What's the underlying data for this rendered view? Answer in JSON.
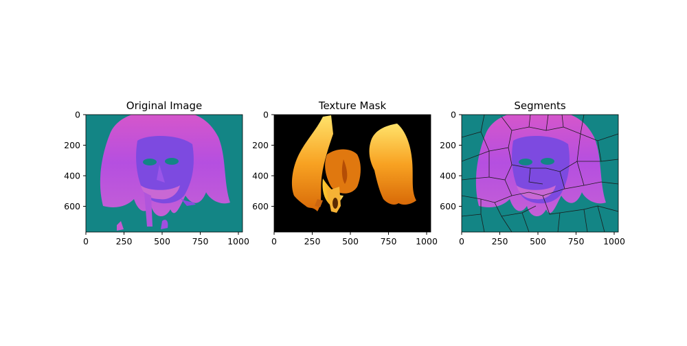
{
  "panels": [
    {
      "id": "original",
      "title": "Original Image",
      "x_ticks": [
        "0",
        "250",
        "500",
        "750",
        "1000"
      ],
      "y_ticks": [
        "0",
        "200",
        "400",
        "600"
      ],
      "content": "face with long hair rendered in magenta/purple colormap on teal background"
    },
    {
      "id": "mask",
      "title": "Texture Mask",
      "x_ticks": [
        "0",
        "250",
        "500",
        "750",
        "1000"
      ],
      "y_ticks": [
        "0",
        "200",
        "400",
        "600"
      ],
      "content": "hair and beard textures in yellow/orange heat colormap on black background"
    },
    {
      "id": "segments",
      "title": "Segments",
      "x_ticks": [
        "0",
        "250",
        "500",
        "750",
        "1000"
      ],
      "y_ticks": [
        "0",
        "200",
        "400",
        "600"
      ],
      "content": "superpixel segmentation overlay with black boundaries"
    }
  ],
  "colors": {
    "teal_bg": "#138585",
    "magenta": "#c94fd0",
    "purple": "#7a47e6",
    "mask_bg": "#000000",
    "hair_yellow": "#ffd24a",
    "hair_orange": "#f08a10",
    "boundary": "#1a1a1a"
  }
}
